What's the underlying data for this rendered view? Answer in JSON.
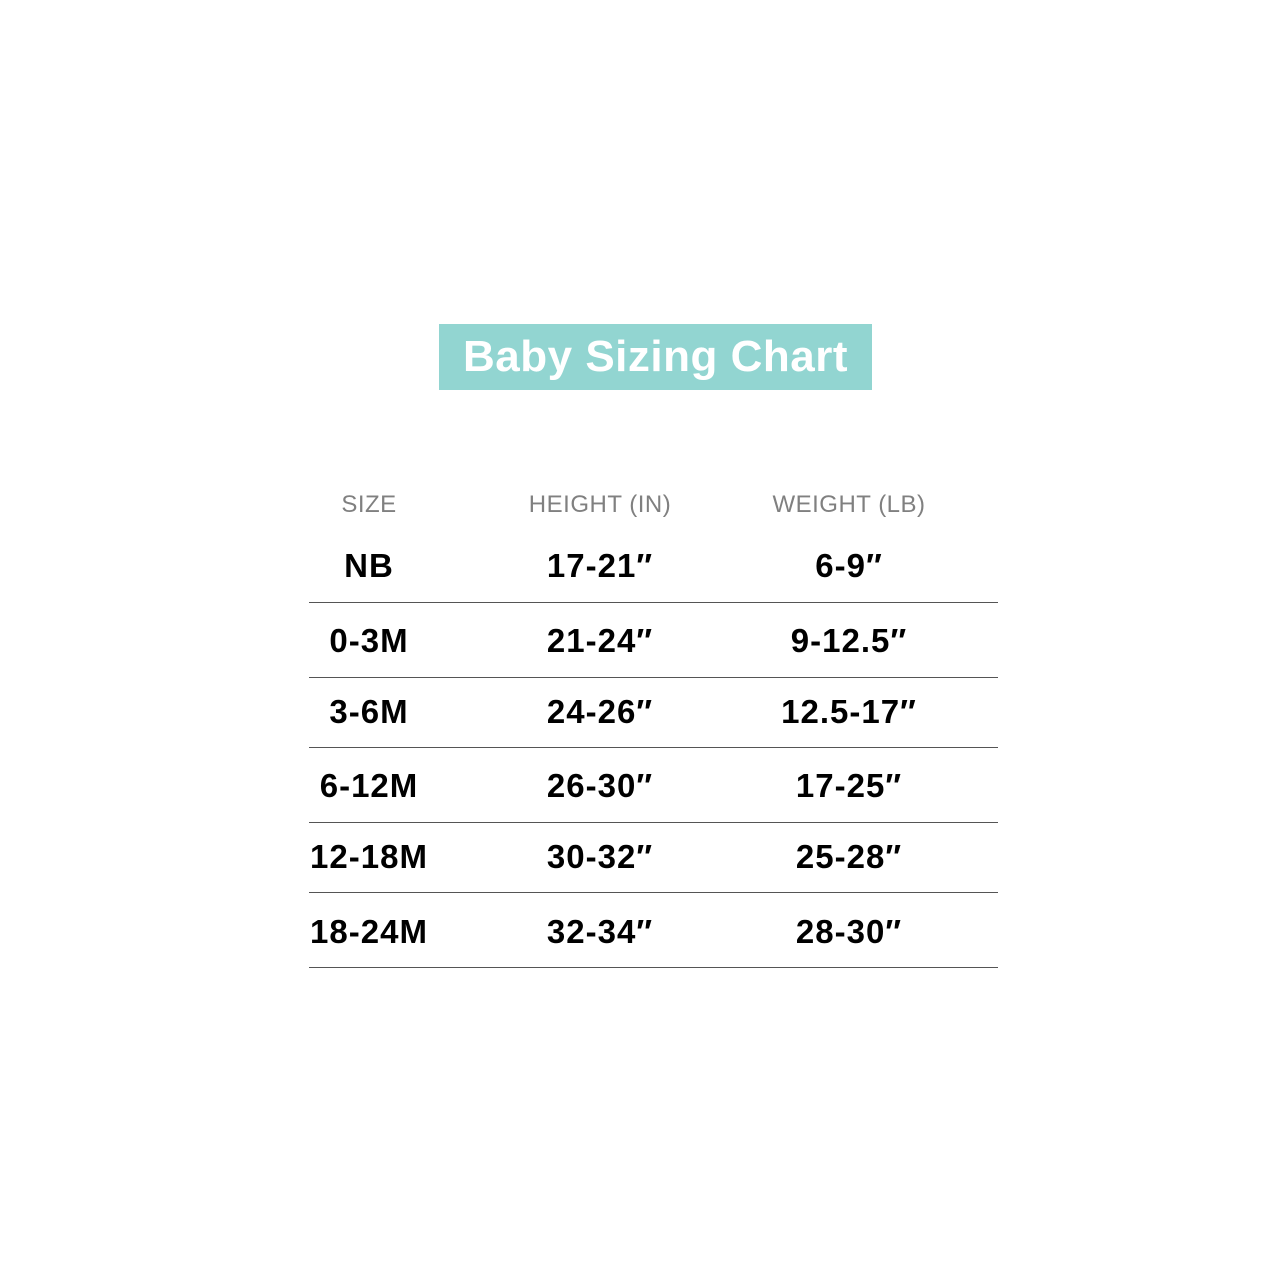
{
  "title": "Baby Sizing Chart",
  "colors": {
    "title_bg": "#92d5d1",
    "header_text": "#808080",
    "value_text": "#000000",
    "rule": "#555555"
  },
  "table": {
    "headers": [
      "SIZE",
      "HEIGHT (IN)",
      "WEIGHT (LB)"
    ],
    "rows": [
      [
        "NB",
        "17-21″",
        "6-9″"
      ],
      [
        "0-3M",
        "21-24″",
        "9-12.5″"
      ],
      [
        "3-6M",
        "24-26″",
        "12.5-17″"
      ],
      [
        "6-12M",
        "26-30″",
        "17-25″"
      ],
      [
        "12-18M",
        "30-32″",
        "25-28″"
      ],
      [
        "18-24M",
        "32-34″",
        "28-30″"
      ]
    ]
  }
}
